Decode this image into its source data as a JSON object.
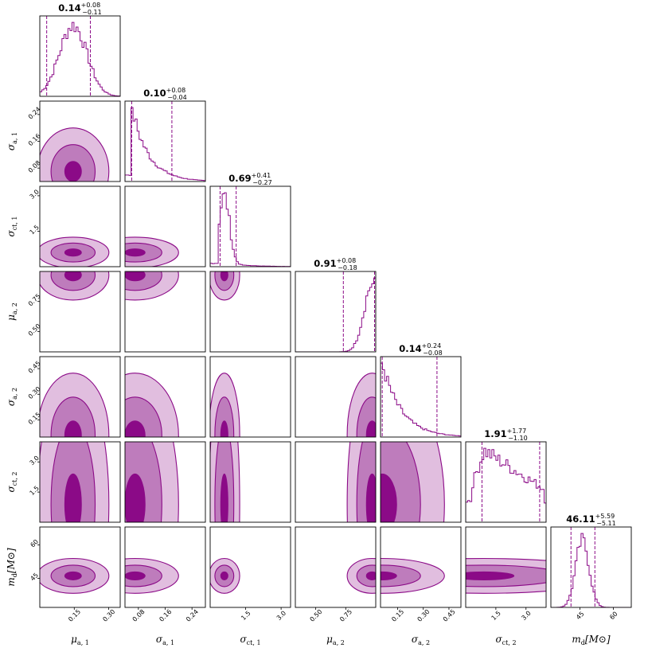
{
  "colors": {
    "contour_outer": "#e1bedf",
    "contour_mid": "#be7cbc",
    "contour_inner": "#8b0a87",
    "line": "#8b0a87",
    "frame": "#000000"
  },
  "chart_data": {
    "type": "corner",
    "parameters": [
      {
        "id": "mu_a1",
        "label_main": "μ",
        "label_sub": "a, 1",
        "range": [
          0.0,
          0.35
        ],
        "ticks": [
          0.15,
          0.3
        ],
        "median": 0.14,
        "plus": 0.08,
        "minus": 0.11,
        "title_value": "0.14",
        "title_plus": "+0.08",
        "title_minus": "−0.11",
        "hist_peak": 0.145,
        "hist_width": 0.06
      },
      {
        "id": "sigma_a1",
        "label_main": "σ",
        "label_sub": "a, 1",
        "range": [
          0.04,
          0.28
        ],
        "ticks": [
          0.08,
          0.16,
          0.24
        ],
        "median": 0.1,
        "plus": 0.08,
        "minus": 0.04,
        "title_value": "0.10",
        "title_plus": "+0.08",
        "title_minus": "−0.04",
        "hist_peak": 0.07,
        "hist_width": 0.05
      },
      {
        "id": "sigma_ct1",
        "label_main": "σ",
        "label_sub": "ct, 1",
        "range": [
          0.0,
          3.4
        ],
        "ticks": [
          1.5,
          3.0
        ],
        "median": 0.69,
        "plus": 0.41,
        "minus": 0.27,
        "title_value": "0.69",
        "title_plus": "+0.41",
        "title_minus": "−0.27",
        "hist_peak": 0.6,
        "hist_width": 0.25
      },
      {
        "id": "mu_a2",
        "label_main": "μ",
        "label_sub": "a, 2",
        "range": [
          0.33,
          1.0
        ],
        "ticks": [
          0.5,
          0.75
        ],
        "median": 0.91,
        "plus": 0.08,
        "minus": 0.18,
        "title_value": "0.91",
        "title_plus": "+0.08",
        "title_minus": "−0.18",
        "hist_peak": 0.97,
        "hist_width": 0.08
      },
      {
        "id": "sigma_a2",
        "label_main": "σ",
        "label_sub": "a, 2",
        "range": [
          0.05,
          0.52
        ],
        "ticks": [
          0.15,
          0.3,
          0.45
        ],
        "median": 0.14,
        "plus": 0.24,
        "minus": 0.08,
        "title_value": "0.14",
        "title_plus": "+0.24",
        "title_minus": "−0.08",
        "hist_peak": 0.06,
        "hist_width": 0.14
      },
      {
        "id": "sigma_ct2",
        "label_main": "σ",
        "label_sub": "ct, 2",
        "range": [
          0.0,
          4.0
        ],
        "ticks": [
          1.5,
          3.0
        ],
        "median": 1.91,
        "plus": 1.77,
        "minus": 1.1,
        "title_value": "1.91",
        "title_plus": "+1.77",
        "title_minus": "−1.10",
        "hist_peak": 0.9,
        "hist_width": 2.5
      },
      {
        "id": "m_d",
        "label_main": "m",
        "label_sub": "d",
        "label_suffix": "[M⊙]",
        "range": [
          32.0,
          68.0
        ],
        "ticks": [
          45,
          60
        ],
        "median": 46.11,
        "plus": 5.59,
        "minus": 5.11,
        "title_value": "46.11",
        "title_plus": "+5.59",
        "title_minus": "−5.11",
        "hist_peak": 46.1,
        "hist_width": 3.0
      }
    ],
    "histogram_quantile_lines": "dashed",
    "contour_levels": 3
  }
}
